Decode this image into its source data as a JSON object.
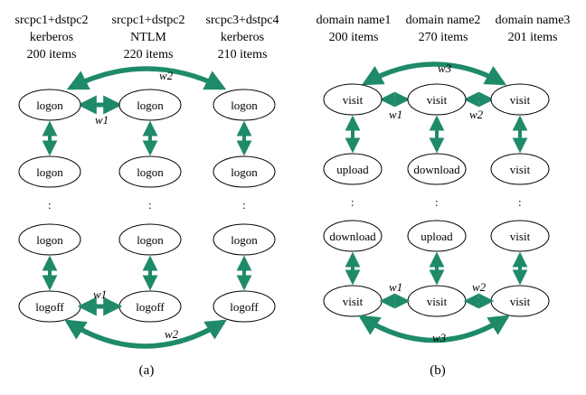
{
  "panel_a": {
    "columns": [
      {
        "line1": "srcpc1+dstpc2",
        "line2": "kerberos",
        "line3": "200 items",
        "nodes": [
          "logon",
          "logon",
          "logon",
          "logoff"
        ]
      },
      {
        "line1": "srcpc1+dstpc2",
        "line2": "NTLM",
        "line3": "220 items",
        "nodes": [
          "logon",
          "logon",
          "logon",
          "logoff"
        ]
      },
      {
        "line1": "srcpc3+dstpc4",
        "line2": "kerberos",
        "line3": "210 items",
        "nodes": [
          "logon",
          "logon",
          "logon",
          "logoff"
        ]
      }
    ],
    "weights": {
      "top_curve": "w2",
      "top_link": "w1",
      "bottom_link": "w1",
      "bottom_curve": "w2"
    },
    "dots": ":",
    "caption": "(a)"
  },
  "panel_b": {
    "columns": [
      {
        "line1": "domain name1",
        "line2": "200 items",
        "nodes": [
          "visit",
          "upload",
          "download",
          "visit"
        ]
      },
      {
        "line1": "domain name2",
        "line2": "270 items",
        "nodes": [
          "visit",
          "download",
          "upload",
          "visit"
        ]
      },
      {
        "line1": "domain name3",
        "line2": "201 items",
        "nodes": [
          "visit",
          "visit",
          "visit",
          "visit"
        ]
      }
    ],
    "weights": {
      "top_curve": "w3",
      "top_link_1": "w1",
      "top_link_2": "w2",
      "bottom_link_1": "w1",
      "bottom_link_2": "w2",
      "bottom_curve": "w3"
    },
    "dots": ":",
    "caption": "(b)"
  },
  "colors": {
    "arrow": "#1f8a6a",
    "outline": "#000000"
  }
}
